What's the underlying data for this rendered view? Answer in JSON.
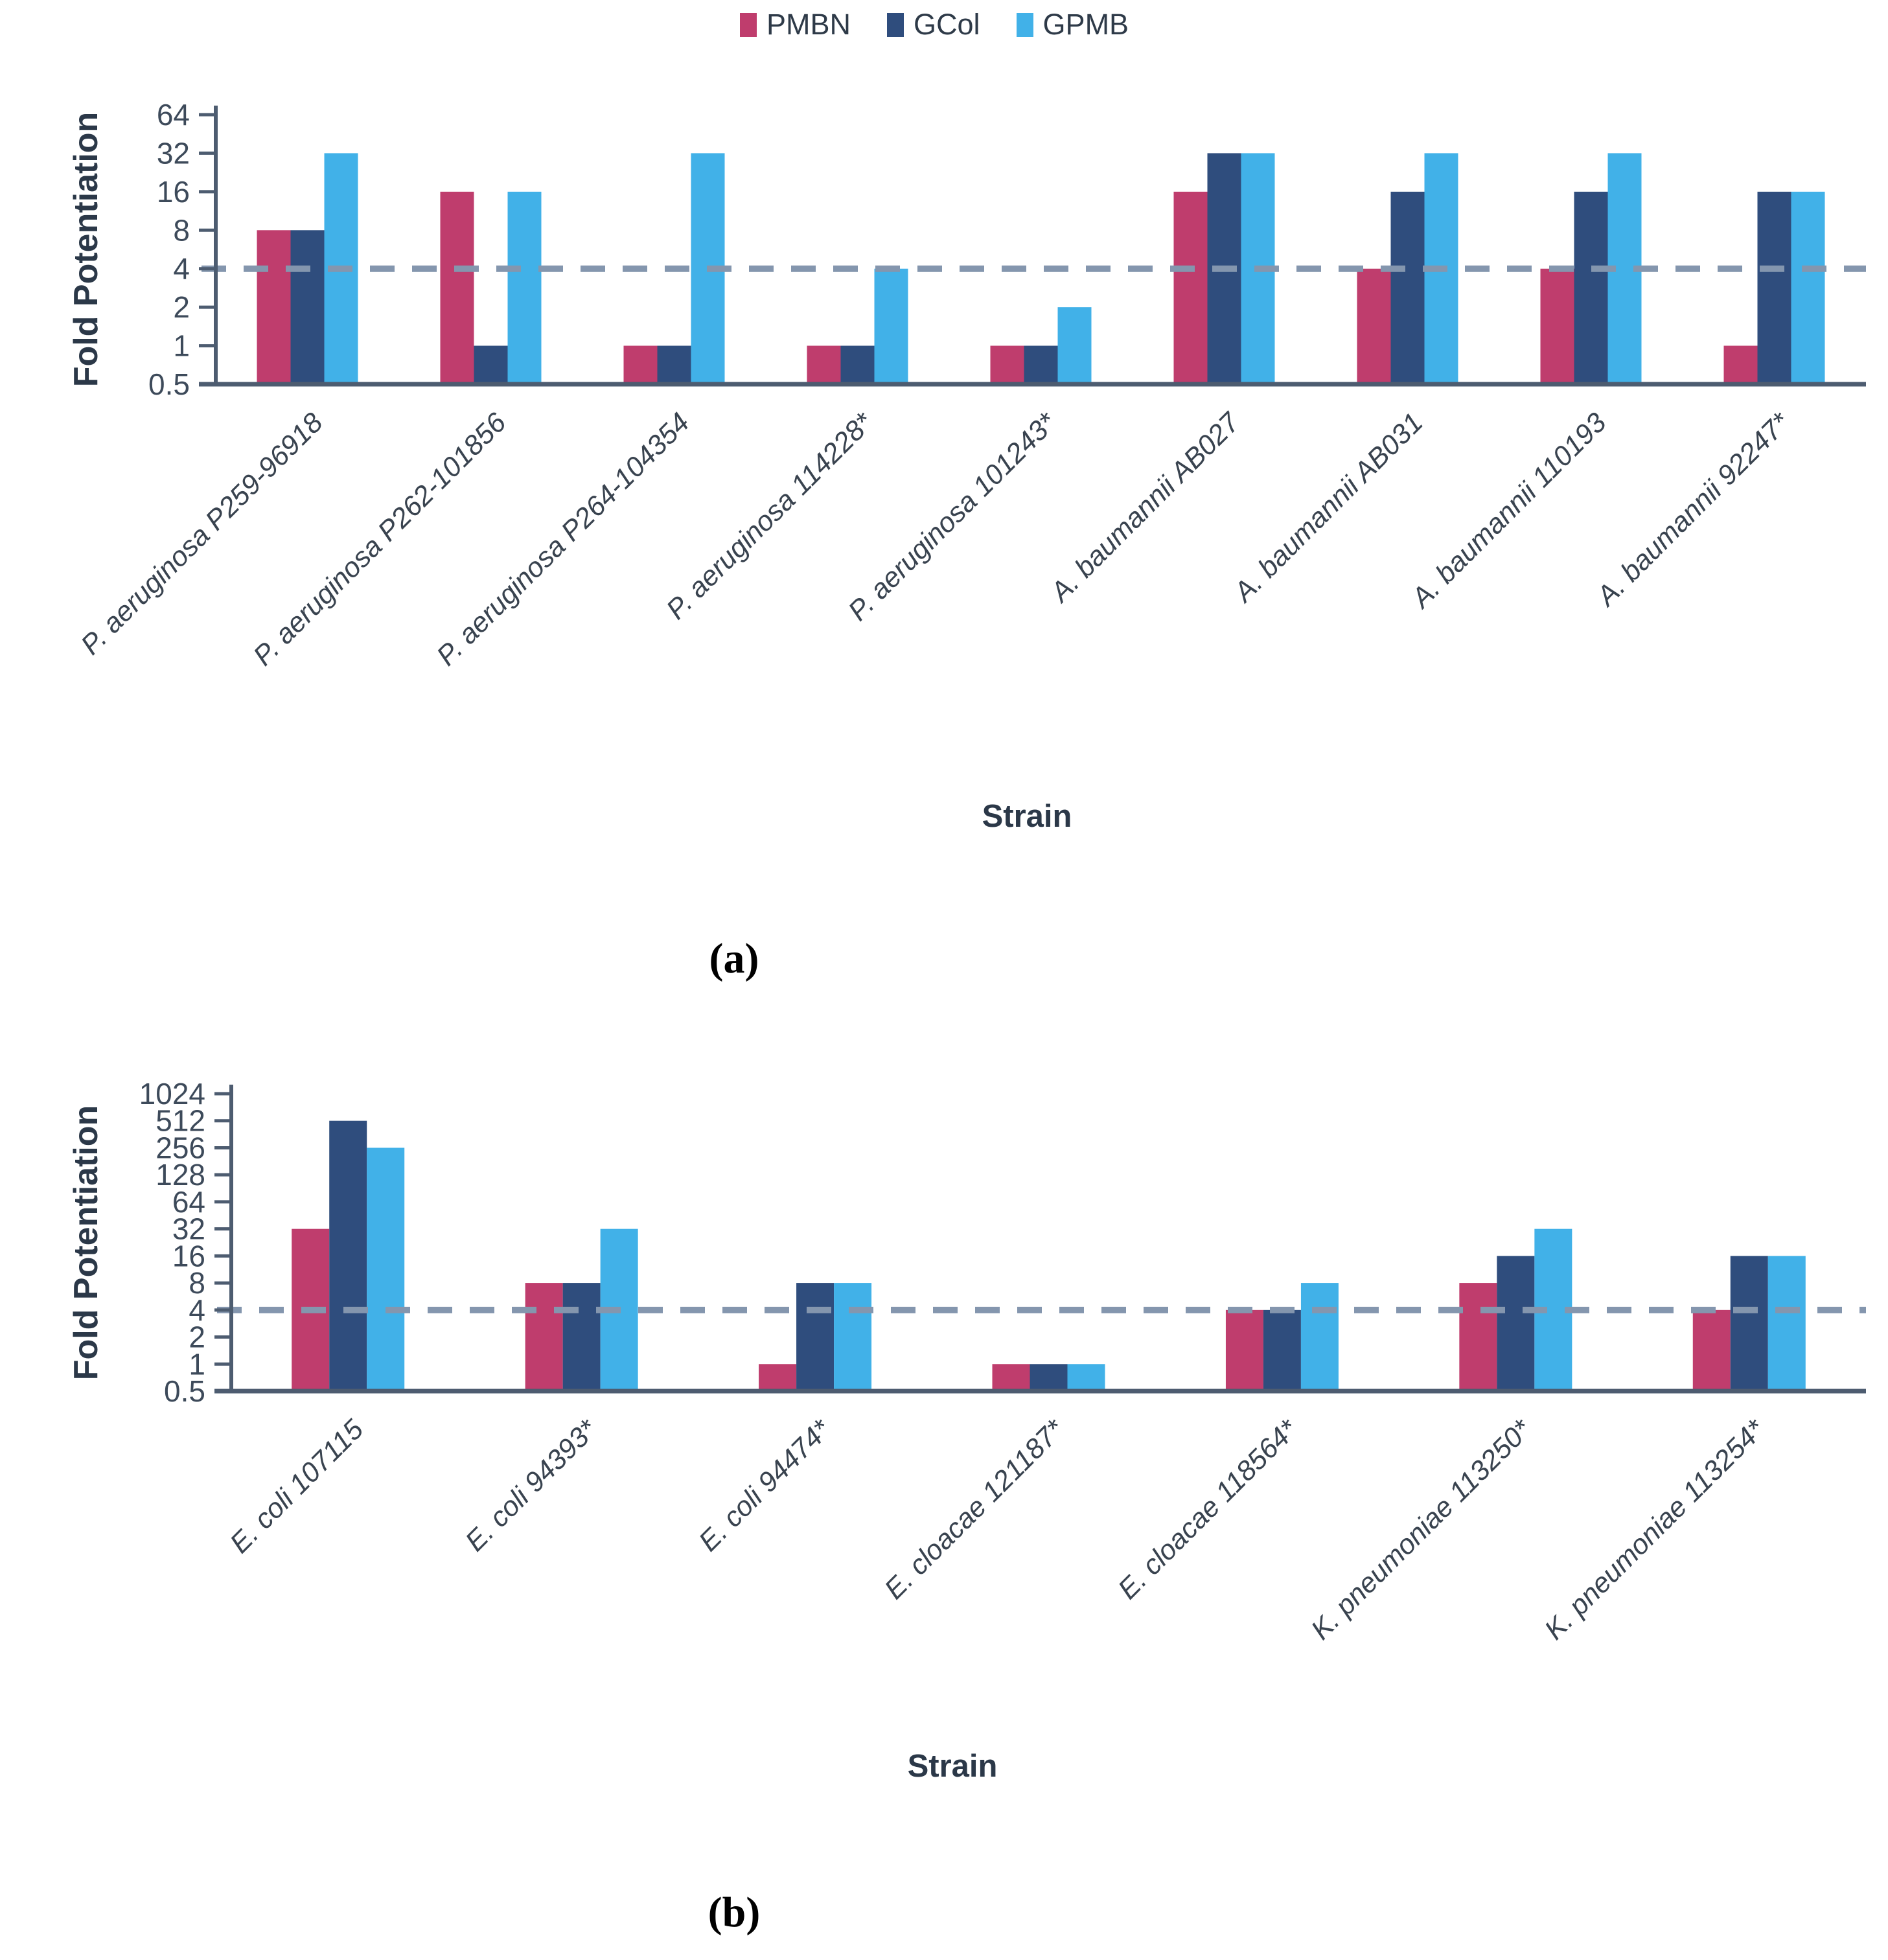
{
  "legend": {
    "position": "top",
    "items": [
      {
        "label": "PMBN",
        "color": "#bf3d6d"
      },
      {
        "label": "GCol",
        "color": "#2f4d7d"
      },
      {
        "label": "GPMB",
        "color": "#41b1e8"
      }
    ]
  },
  "captions": {
    "a": "(a)",
    "b": "(b)"
  },
  "reference_line": {
    "value": 4,
    "color": "#8496ae",
    "style": "dashed"
  },
  "axis_colors": {
    "line": "#4d5c70",
    "tick_text": "#3d4a5a",
    "category_text": "#39434f"
  },
  "chart_data": [
    {
      "id": "a",
      "type": "bar",
      "scale": "log2",
      "title": "",
      "xlabel": "Strain",
      "ylabel": "Fold Potentiation",
      "ylim": [
        0.5,
        64
      ],
      "yticks": [
        64,
        32,
        16,
        8,
        4,
        2,
        1,
        0.5
      ],
      "grid": false,
      "reference_line": 4,
      "categories": [
        "P. aeruginosa P259-96918",
        "P. aeruginosa P262-101856",
        "P. aeruginosa P264-104354",
        "P. aeruginosa 114228*",
        "P. aeruginosa 101243*",
        "A. baumannii AB027",
        "A. baumannii AB031",
        "A. baumannii 110193",
        "A. baumannii 92247*"
      ],
      "series": [
        {
          "name": "PMBN",
          "values": [
            8,
            16,
            1,
            1,
            1,
            16,
            4,
            4,
            1
          ]
        },
        {
          "name": "GCol",
          "values": [
            8,
            1,
            1,
            1,
            1,
            32,
            16,
            16,
            16
          ]
        },
        {
          "name": "GPMB",
          "values": [
            32,
            16,
            32,
            4,
            2,
            32,
            32,
            32,
            16
          ]
        }
      ]
    },
    {
      "id": "b",
      "type": "bar",
      "scale": "log2",
      "title": "",
      "xlabel": "Strain",
      "ylabel": "Fold Potentiation",
      "ylim": [
        0.5,
        1024
      ],
      "yticks": [
        1024,
        512,
        256,
        128,
        64,
        32,
        16,
        8,
        4,
        2,
        1,
        0.5
      ],
      "grid": false,
      "reference_line": 4,
      "categories": [
        "E. coli 107115",
        "E. coli 94393*",
        "E. coli 94474*",
        "E. cloacae 121187*",
        "E. cloacae 118564*",
        "K. pneumoniae 113250*",
        "K. pneumoniae 113254*"
      ],
      "series": [
        {
          "name": "PMBN",
          "values": [
            32,
            8,
            1,
            1,
            4,
            8,
            4
          ]
        },
        {
          "name": "GCol",
          "values": [
            512,
            8,
            8,
            1,
            4,
            16,
            16
          ]
        },
        {
          "name": "GPMB",
          "values": [
            256,
            32,
            8,
            1,
            8,
            32,
            16
          ]
        }
      ]
    }
  ]
}
